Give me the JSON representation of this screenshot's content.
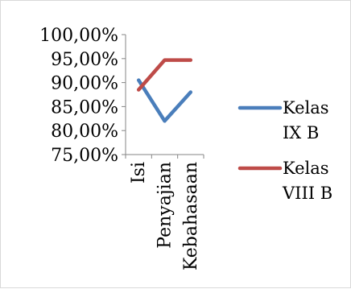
{
  "chart_data": {
    "type": "line",
    "categories": [
      "Isi",
      "Penyajian",
      "Kebahasaan"
    ],
    "series": [
      {
        "name": "Kelas IX B",
        "name_lines": [
          "Kelas",
          "IX B"
        ],
        "values": [
          90.5,
          82.0,
          88.0
        ],
        "color": "#4a7ebb"
      },
      {
        "name": "Kelas VIII B",
        "name_lines": [
          "Kelas",
          "VIII B"
        ],
        "values": [
          88.5,
          94.7,
          94.7
        ],
        "color": "#be4b48"
      }
    ],
    "ylim": [
      75,
      100
    ],
    "y_ticks": [
      100,
      95,
      90,
      85,
      80,
      75
    ],
    "y_tick_labels": [
      "100,00%",
      "95,00%",
      "90,00%",
      "85,00%",
      "80,00%",
      "75,00%"
    ],
    "grid": false,
    "legend_position": "right",
    "axis_color": "#868686"
  }
}
